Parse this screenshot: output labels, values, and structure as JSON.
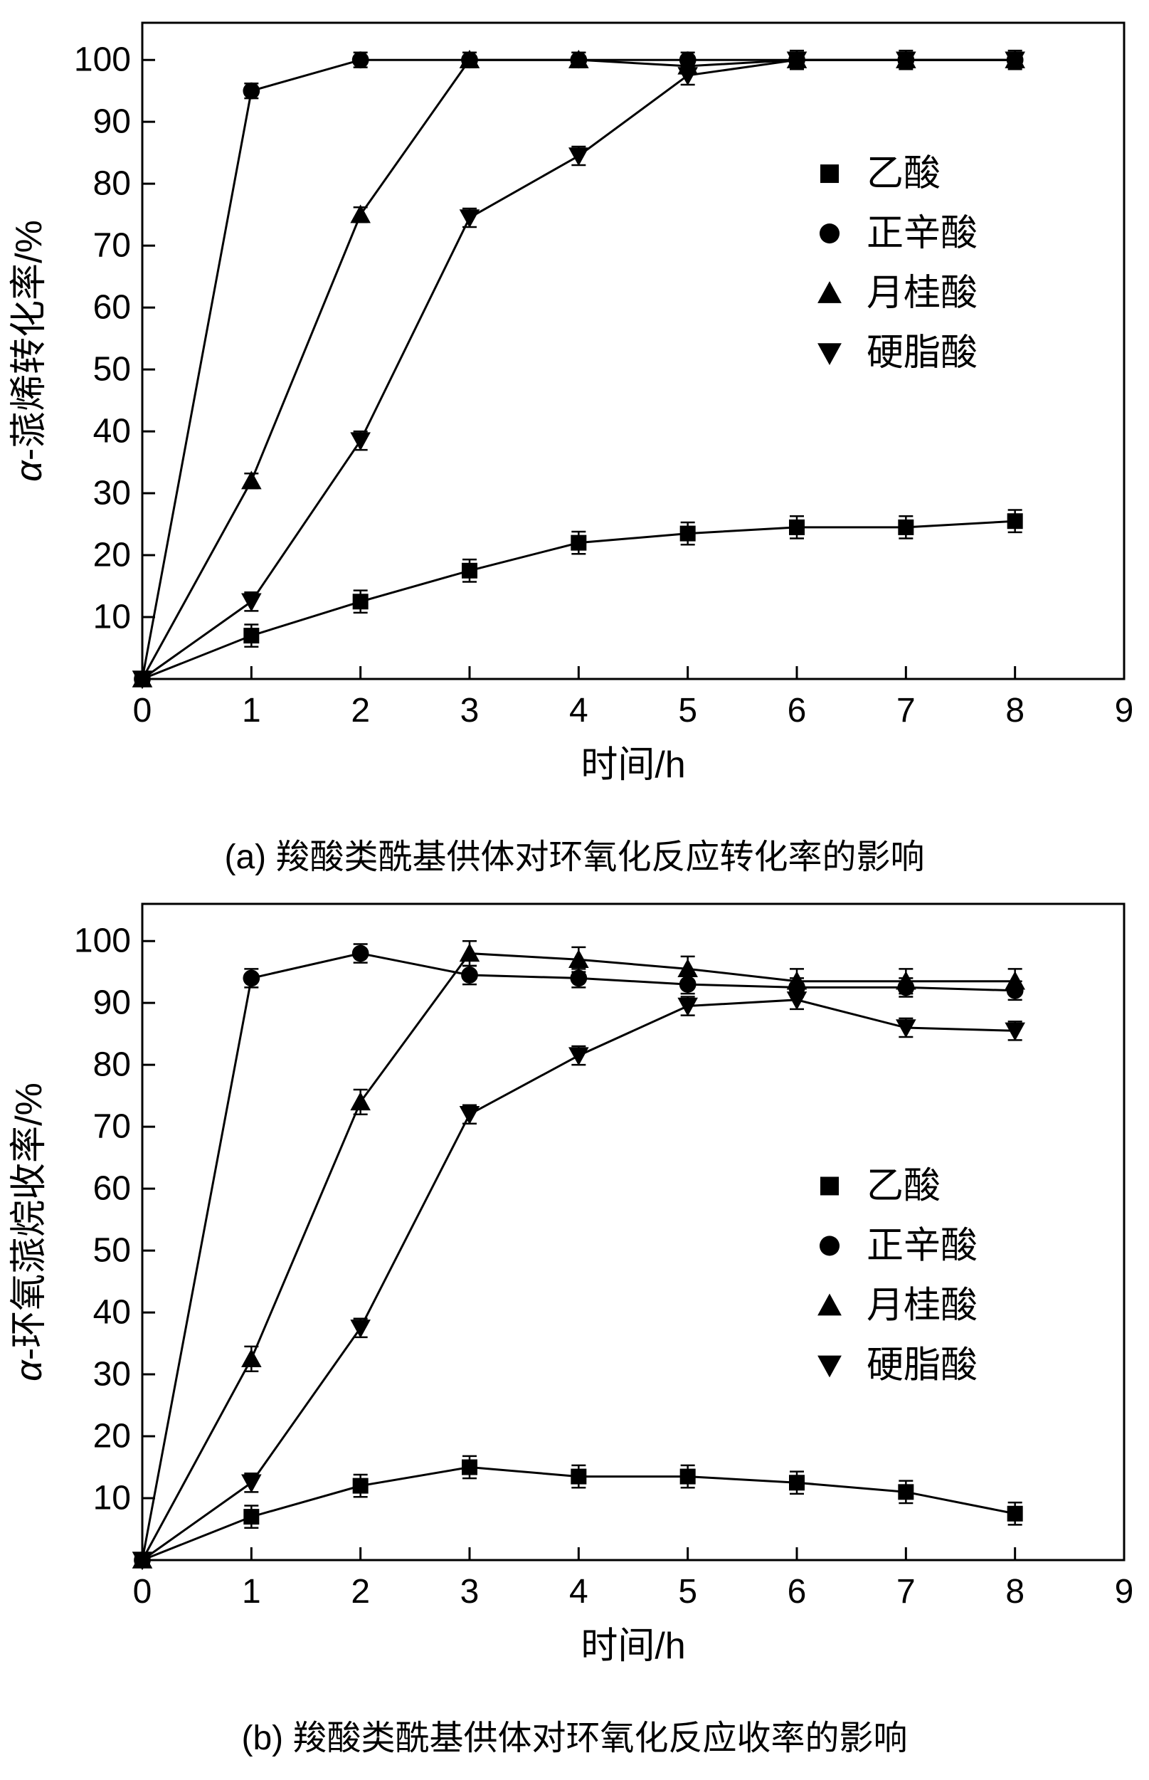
{
  "page": {
    "background": "#ffffff",
    "line_color": "#000000",
    "marker_color": "#000000"
  },
  "chart_data": [
    {
      "type": "line",
      "caption": "(a) 羧酸类酰基供体对环氧化反应转化率的影响",
      "xlabel": "时间/h",
      "ylabel": "α-蒎烯转化率/%",
      "xlim": [
        0,
        9
      ],
      "ylim": [
        0,
        106
      ],
      "xticks": [
        0,
        1,
        2,
        3,
        4,
        5,
        6,
        7,
        8,
        9
      ],
      "yticks": [
        10,
        20,
        30,
        40,
        50,
        60,
        70,
        80,
        90,
        100
      ],
      "x": [
        0,
        1,
        2,
        3,
        4,
        5,
        6,
        7,
        8
      ],
      "grid": false,
      "legend_pos": {
        "x": 0.7,
        "y": 0.23
      },
      "series": [
        {
          "name": "乙酸",
          "marker": "square",
          "err": 1.8,
          "values": [
            0,
            7,
            12.5,
            17.5,
            22,
            23.5,
            24.5,
            24.5,
            25.5
          ]
        },
        {
          "name": "正辛酸",
          "marker": "circle",
          "err": 1.2,
          "values": [
            0,
            95,
            100,
            100,
            100,
            100,
            100,
            100,
            100
          ]
        },
        {
          "name": "月桂酸",
          "marker": "triangle-up",
          "err": 1.2,
          "values": [
            0,
            32,
            75,
            100,
            100,
            99,
            100,
            100,
            100
          ]
        },
        {
          "name": "硬脂酸",
          "marker": "triangle-down",
          "err": 1.5,
          "values": [
            0,
            12.5,
            38.5,
            74.5,
            84.5,
            97.5,
            100,
            100,
            100
          ]
        }
      ]
    },
    {
      "type": "line",
      "caption": "(b) 羧酸类酰基供体对环氧化反应收率的影响",
      "xlabel": "时间/h",
      "ylabel": "α-环氧蒎烷收率/%",
      "xlim": [
        0,
        9
      ],
      "ylim": [
        0,
        106
      ],
      "xticks": [
        0,
        1,
        2,
        3,
        4,
        5,
        6,
        7,
        8,
        9
      ],
      "yticks": [
        10,
        20,
        30,
        40,
        50,
        60,
        70,
        80,
        90,
        100
      ],
      "x": [
        0,
        1,
        2,
        3,
        4,
        5,
        6,
        7,
        8
      ],
      "grid": false,
      "legend_pos": {
        "x": 0.7,
        "y": 0.43
      },
      "series": [
        {
          "name": "乙酸",
          "marker": "square",
          "err": 1.8,
          "values": [
            0,
            7,
            12,
            15,
            13.5,
            13.5,
            12.5,
            11,
            7.5
          ]
        },
        {
          "name": "正辛酸",
          "marker": "circle",
          "err": 1.5,
          "values": [
            0,
            94,
            98,
            94.5,
            94,
            93,
            92.5,
            92.5,
            92
          ]
        },
        {
          "name": "月桂酸",
          "marker": "triangle-up",
          "err": 2.0,
          "values": [
            0,
            32.5,
            74,
            98,
            97,
            95.5,
            93.5,
            93.5,
            93.5
          ]
        },
        {
          "name": "硬脂酸",
          "marker": "triangle-down",
          "err": 1.5,
          "values": [
            0,
            12.5,
            37.5,
            72,
            81.5,
            89.5,
            90.5,
            86,
            85.5
          ]
        }
      ]
    }
  ]
}
